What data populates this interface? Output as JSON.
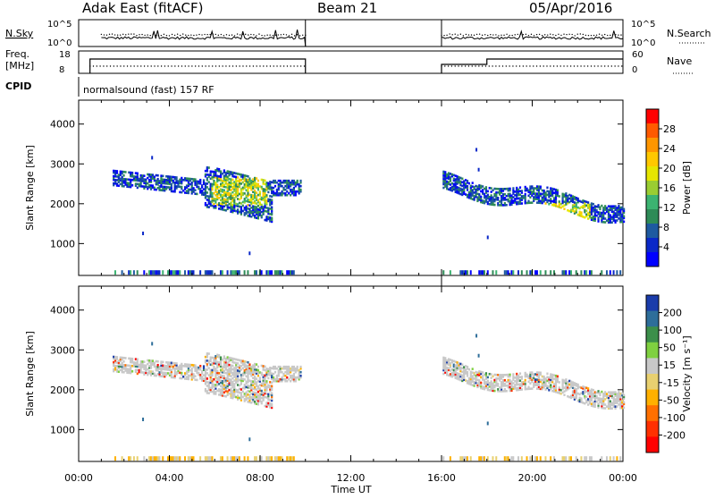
{
  "header": {
    "station": "Adak East (fitACF)",
    "beam": "Beam 21",
    "date": "05/Apr/2016"
  },
  "aux_labels": {
    "nsky": "N.Sky",
    "freq_line1": "Freq.",
    "freq_line2": "[MHz]",
    "cpid": "CPID",
    "nsearch": "N.Search",
    "nave": "Nave",
    "nsky_ticks": [
      "10^5",
      "10^0"
    ],
    "nsearch_ticks": [
      "10^5",
      "10^0"
    ],
    "freq_ticks": [
      "18",
      "8"
    ],
    "nave_ticks": [
      "60",
      "0"
    ]
  },
  "cpid_text": "normalsound (fast) 157 RF",
  "chart_data": [
    {
      "type": "heatmap",
      "panel": "power",
      "ylabel": "Slant Range [km]",
      "yticks": [
        1000,
        2000,
        3000,
        4000
      ],
      "ylim": [
        200,
        4600
      ],
      "xlim": [
        0,
        24
      ],
      "colorbar": {
        "label": "Power [dB]",
        "ticks": [
          "28",
          "24",
          "20",
          "16",
          "12",
          "8",
          "4"
        ],
        "colors": [
          "#ff0000",
          "#ff5a00",
          "#ff9600",
          "#ffc800",
          "#e6e600",
          "#9acd32",
          "#3cb371",
          "#2e8b57",
          "#1e5aa0",
          "#0a28c8",
          "#0000ff"
        ]
      },
      "echo_regions": [
        {
          "x": [
            1.5,
            10.0
          ],
          "y": [
            1800,
            3000
          ],
          "level": "low"
        },
        {
          "x": [
            5.5,
            8.5
          ],
          "y": [
            1900,
            2800
          ],
          "level": "high"
        },
        {
          "x": [
            16.0,
            24.0
          ],
          "y": [
            1400,
            2700
          ],
          "level": "low"
        },
        {
          "x": [
            20.5,
            22.5
          ],
          "y": [
            1400,
            2000
          ],
          "level": "mid"
        }
      ]
    },
    {
      "type": "heatmap",
      "panel": "velocity",
      "ylabel": "Slant Range [km]",
      "yticks": [
        1000,
        2000,
        3000,
        4000
      ],
      "ylim": [
        200,
        4600
      ],
      "xlim": [
        0,
        24
      ],
      "xticks": [
        "00:00",
        "04:00",
        "08:00",
        "12:00",
        "16:00",
        "20:00",
        "00:00"
      ],
      "xlabel": "Time UT",
      "colorbar": {
        "label": "Velocity [m s⁻¹]",
        "ticks": [
          "200",
          "100",
          "50",
          "15",
          "-15",
          "-50",
          "-100",
          "-200"
        ],
        "colors": [
          "#1a3caa",
          "#2e6e9a",
          "#3c8f4a",
          "#7fd040",
          "#c8c8c8",
          "#e8d070",
          "#ffb000",
          "#ff7000",
          "#ff3000",
          "#ff0000"
        ]
      }
    }
  ],
  "colors": {
    "axis": "#000000",
    "ground_scatter": "#b0b0b0"
  }
}
